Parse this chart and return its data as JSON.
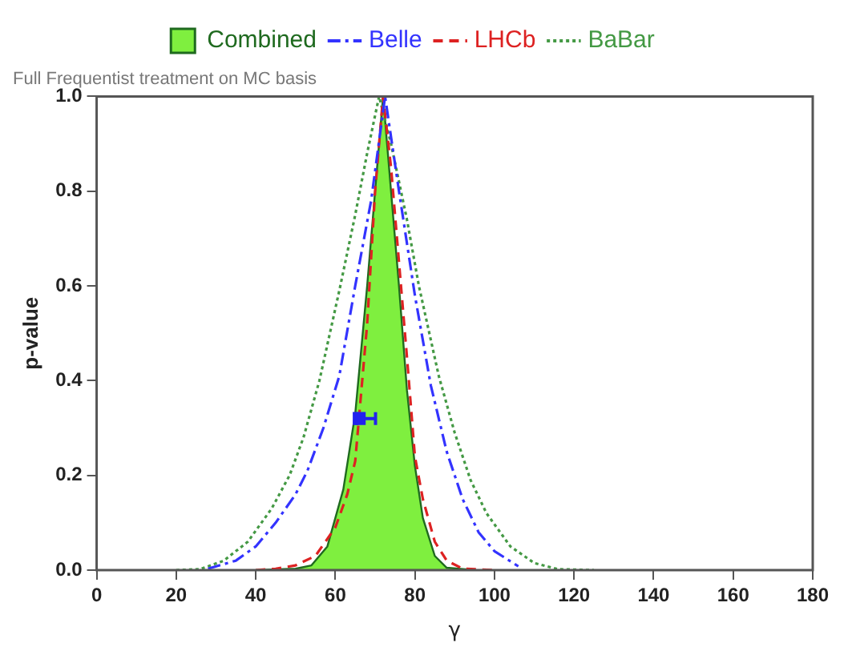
{
  "chart_data": {
    "type": "line",
    "xlabel": "γ",
    "ylabel": "p-value",
    "annotations": [
      "Full Frequentist treatment on MC basis"
    ],
    "xlim": [
      0,
      180
    ],
    "xticks": [
      0,
      20,
      40,
      60,
      80,
      100,
      120,
      140,
      160,
      180
    ],
    "ylim": [
      0,
      1
    ],
    "yticks": [
      {
        "value": 0,
        "label": "0.0"
      },
      {
        "value": 0.2,
        "label": "0.2"
      },
      {
        "value": 0.4,
        "label": "0.4"
      },
      {
        "value": 0.6,
        "label": "0.6"
      },
      {
        "value": 0.8,
        "label": "0.8"
      },
      {
        "value": 1,
        "label": "1.0"
      }
    ],
    "grid": false,
    "legend": "top",
    "series": [
      {
        "name": "Combined",
        "type": "area",
        "color": "#7fef3f",
        "line_style": "solid",
        "x": [
          40,
          50,
          54,
          58,
          62,
          65,
          68,
          70,
          72,
          74,
          76,
          78,
          80,
          82,
          85,
          88,
          95
        ],
        "values": [
          0,
          0.003,
          0.01,
          0.05,
          0.17,
          0.33,
          0.6,
          0.8,
          1.0,
          0.8,
          0.6,
          0.38,
          0.22,
          0.11,
          0.03,
          0.005,
          0
        ]
      },
      {
        "name": "Belle",
        "color": "#3333ff",
        "line_style": "dashdot",
        "x": [
          28,
          35,
          40,
          45,
          50,
          53,
          57,
          61,
          65,
          69,
          72.5,
          76,
          80,
          84,
          88,
          92,
          96,
          100,
          106
        ],
        "values": [
          0.003,
          0.02,
          0.05,
          0.1,
          0.16,
          0.21,
          0.3,
          0.41,
          0.6,
          0.78,
          1.0,
          0.8,
          0.58,
          0.39,
          0.25,
          0.15,
          0.08,
          0.04,
          0.008
        ]
      },
      {
        "name": "LHCb",
        "color": "#dd2222",
        "line_style": "dashed",
        "x": [
          40,
          45,
          50,
          55,
          60,
          63,
          65,
          68,
          70,
          72,
          74,
          76,
          78,
          80,
          82,
          85,
          88,
          92,
          100
        ],
        "values": [
          0,
          0.003,
          0.01,
          0.03,
          0.09,
          0.16,
          0.23,
          0.52,
          0.8,
          1.0,
          0.85,
          0.65,
          0.45,
          0.24,
          0.15,
          0.06,
          0.02,
          0.003,
          0
        ]
      },
      {
        "name": "BaBar",
        "color": "#449944",
        "line_style": "dotted",
        "x": [
          20,
          26,
          32,
          38,
          44,
          48.5,
          52,
          56,
          61,
          65,
          68,
          71,
          74,
          78,
          81,
          86,
          90,
          94,
          98,
          104,
          110,
          116,
          125
        ],
        "values": [
          0,
          0.002,
          0.02,
          0.06,
          0.13,
          0.2,
          0.28,
          0.4,
          0.59,
          0.75,
          0.88,
          1.0,
          0.9,
          0.74,
          0.6,
          0.41,
          0.29,
          0.19,
          0.12,
          0.05,
          0.015,
          0.002,
          0
        ]
      },
      {
        "type": "scatter",
        "color": "#2222ee",
        "marker": "square",
        "x": [
          66
        ],
        "values": [
          0.32
        ],
        "xerrors": [
          [
            65.4,
            70.1
          ]
        ]
      }
    ]
  }
}
